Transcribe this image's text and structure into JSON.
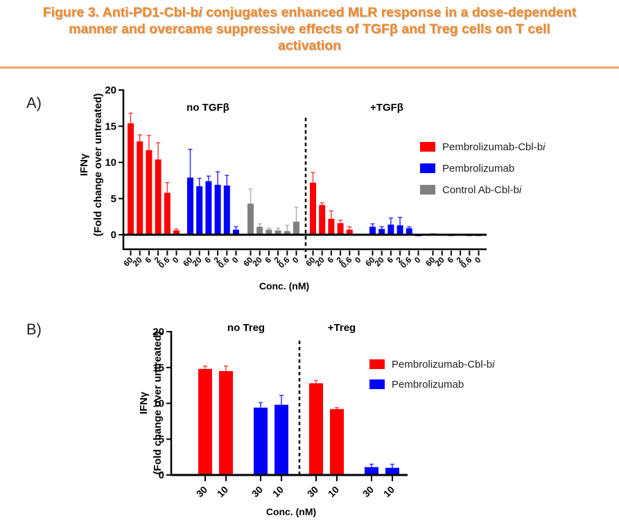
{
  "figure": {
    "title_parts": [
      "Figure 3. Anti-PD1-Cbl-b",
      "i",
      " conjugates enhanced MLR response in a dose-dependent",
      "manner and overcame suppressive effects of TGFβ and Treg cells on T cell",
      "activation"
    ],
    "accent_color": "#f08a2c"
  },
  "chart_data": [
    {
      "panel": "A)",
      "type": "bar",
      "ylabel_line1": "IFNγ",
      "ylabel_line2": "(Fold change over untreated)",
      "xlabel": "Conc. (nM)",
      "ylim": [
        0,
        20
      ],
      "yticks": [
        0,
        5,
        10,
        15,
        20
      ],
      "group_labels": [
        "no TGFβ",
        "+TGFβ"
      ],
      "categories": [
        "60",
        "20",
        "6",
        "2",
        "0.6",
        "0"
      ],
      "legend": [
        {
          "label": "Pembrolizumab-Cbl-b",
          "italic_suffix": "i",
          "color": "#ff0000"
        },
        {
          "label": "Pembrolizumab",
          "italic_suffix": "",
          "color": "#0000ff"
        },
        {
          "label": "Control Ab-Cbl-b",
          "italic_suffix": "i",
          "color": "#808080"
        }
      ],
      "legend_position": "right",
      "groups": [
        {
          "condition": "no TGFβ",
          "series": "Pembrolizumab-Cbl-bi",
          "color": "#ff0000",
          "values": [
            15.4,
            12.9,
            11.7,
            10.4,
            5.8,
            0.6
          ],
          "errors": [
            1.4,
            0.9,
            2.0,
            2.3,
            1.4,
            0.2
          ]
        },
        {
          "condition": "no TGFβ",
          "series": "Pembrolizumab",
          "color": "#0000ff",
          "values": [
            7.9,
            6.7,
            7.4,
            6.9,
            6.8,
            0.7
          ],
          "errors": [
            3.9,
            1.1,
            0.7,
            1.8,
            1.4,
            0.4
          ]
        },
        {
          "condition": "no TGFβ",
          "series": "Control Ab-Cbl-bi",
          "color": "#808080",
          "values": [
            4.3,
            1.1,
            0.7,
            0.6,
            0.5,
            1.8
          ],
          "errors": [
            2.0,
            0.4,
            0.2,
            0.3,
            0.8,
            2.0
          ]
        },
        {
          "condition": "+TGFβ",
          "series": "Pembrolizumab-Cbl-bi",
          "color": "#ff0000",
          "values": [
            7.2,
            4.1,
            2.2,
            1.6,
            0.7,
            -0.1
          ],
          "errors": [
            1.4,
            0.3,
            1.1,
            0.4,
            0.4,
            0.0
          ]
        },
        {
          "condition": "+TGFβ",
          "series": "Pembrolizumab",
          "color": "#0000ff",
          "values": [
            1.1,
            0.8,
            1.4,
            1.3,
            0.9,
            -0.2
          ],
          "errors": [
            0.4,
            0.3,
            0.9,
            1.1,
            0.2,
            0.0
          ]
        },
        {
          "condition": "+TGFβ",
          "series": "Control Ab-Cbl-bi",
          "color": "#808080",
          "values": [
            0.2,
            0.1,
            -0.2,
            -0.1,
            -0.2,
            -0.2
          ],
          "errors": [
            0.0,
            0.0,
            0.0,
            0.0,
            0.0,
            0.0
          ]
        }
      ]
    },
    {
      "panel": "B)",
      "type": "bar",
      "ylabel_line1": "IFNγ",
      "ylabel_line2": "(Fold change over untreated)",
      "xlabel": "Conc. (nM)",
      "ylim": [
        0,
        20
      ],
      "yticks": [
        0,
        5,
        10,
        15,
        20
      ],
      "group_labels": [
        "no Treg",
        "+Treg"
      ],
      "categories": [
        "30",
        "10"
      ],
      "legend": [
        {
          "label": "Pembrolizumab-Cbl-b",
          "italic_suffix": "i",
          "color": "#ff0000"
        },
        {
          "label": "Pembrolizumab",
          "italic_suffix": "",
          "color": "#0000ff"
        }
      ],
      "legend_position": "right",
      "groups": [
        {
          "condition": "no Treg",
          "series": "Pembrolizumab-Cbl-bi",
          "color": "#ff0000",
          "values": [
            14.8,
            14.5
          ],
          "errors": [
            0.4,
            0.7
          ]
        },
        {
          "condition": "no Treg",
          "series": "Pembrolizumab",
          "color": "#0000ff",
          "values": [
            9.4,
            9.8
          ],
          "errors": [
            0.7,
            1.3
          ]
        },
        {
          "condition": "+Treg",
          "series": "Pembrolizumab-Cbl-bi",
          "color": "#ff0000",
          "values": [
            12.8,
            9.2
          ],
          "errors": [
            0.4,
            0.2
          ]
        },
        {
          "condition": "+Treg",
          "series": "Pembrolizumab",
          "color": "#0000ff",
          "values": [
            1.1,
            1.0
          ],
          "errors": [
            0.4,
            0.5
          ]
        }
      ]
    }
  ]
}
